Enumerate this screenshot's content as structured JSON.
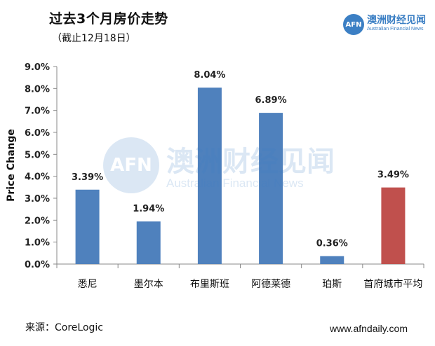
{
  "header": {
    "title": "过去3个月房价走势",
    "subtitle": "（截止12月18日）"
  },
  "logo": {
    "badge": "AFN",
    "cn": "澳洲财经见闻",
    "en": "Australian Financial News"
  },
  "watermark": {
    "badge": "AFN",
    "cn": "澳洲财经见闻",
    "en": "Australian Financial News"
  },
  "footer": {
    "source": "来源：CoreLogic",
    "website": "www.afndaily.com"
  },
  "colors": {
    "bar_default": "#4f81bd",
    "bar_highlight": "#c0504d",
    "axis": "#888888",
    "brand": "#3b7fc4"
  },
  "chart_data": {
    "type": "bar",
    "title": "过去3个月房价走势",
    "subtitle": "（截止12月18日）",
    "xlabel": "",
    "ylabel": "Price Change",
    "categories": [
      "悉尼",
      "墨尔本",
      "布里斯班",
      "阿德莱德",
      "珀斯",
      "首府城市平均"
    ],
    "values": [
      3.39,
      1.94,
      8.04,
      6.89,
      0.36,
      3.49
    ],
    "value_labels": [
      "3.39%",
      "1.94%",
      "8.04%",
      "6.89%",
      "0.36%",
      "3.49%"
    ],
    "highlight_index": 5,
    "ylim": [
      0,
      9
    ],
    "yticks": [
      0,
      1,
      2,
      3,
      4,
      5,
      6,
      7,
      8,
      9
    ],
    "ytick_labels": [
      "0.0%",
      "1.0%",
      "2.0%",
      "3.0%",
      "4.0%",
      "5.0%",
      "6.0%",
      "7.0%",
      "8.0%",
      "9.0%"
    ],
    "grid": false,
    "legend": "none"
  }
}
